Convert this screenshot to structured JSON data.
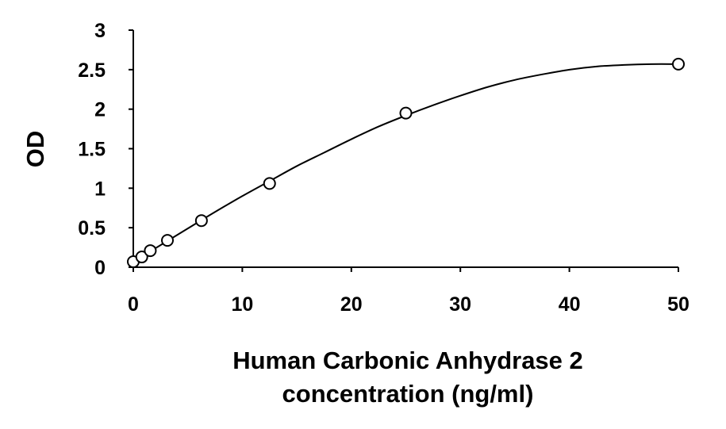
{
  "chart_data": {
    "type": "scatter",
    "title": "",
    "xlabel_lines": [
      "Human Carbonic Anhydrase 2",
      "concentration (ng/ml)"
    ],
    "ylabel": "OD",
    "xlim": [
      0,
      50
    ],
    "ylim": [
      0,
      3
    ],
    "x_ticks": [
      0,
      10,
      20,
      30,
      40,
      50
    ],
    "y_ticks": [
      0,
      0.5,
      1,
      1.5,
      2,
      2.5,
      3
    ],
    "x_tick_labels": [
      "0",
      "10",
      "20",
      "30",
      "40",
      "50"
    ],
    "y_tick_labels": [
      "0",
      "0.5",
      "1",
      "1.5",
      "2",
      "2.5",
      "3"
    ],
    "grid": false,
    "legend": "none",
    "series": [
      {
        "points": [
          {
            "x": 0,
            "y": 0.07
          },
          {
            "x": 0.78,
            "y": 0.13
          },
          {
            "x": 1.56,
            "y": 0.21
          },
          {
            "x": 3.13,
            "y": 0.34
          },
          {
            "x": 6.25,
            "y": 0.59
          },
          {
            "x": 12.5,
            "y": 1.06
          },
          {
            "x": 25,
            "y": 1.95
          },
          {
            "x": 50,
            "y": 2.57
          }
        ],
        "marker": "open-circle",
        "trendline": "polynomial",
        "trendline_points": [
          {
            "x": 0,
            "y": 0.07
          },
          {
            "x": 2.5,
            "y": 0.28
          },
          {
            "x": 5,
            "y": 0.49
          },
          {
            "x": 7.5,
            "y": 0.7
          },
          {
            "x": 10,
            "y": 0.9
          },
          {
            "x": 12.5,
            "y": 1.09
          },
          {
            "x": 15,
            "y": 1.28
          },
          {
            "x": 17.5,
            "y": 1.45
          },
          {
            "x": 20,
            "y": 1.62
          },
          {
            "x": 22.5,
            "y": 1.78
          },
          {
            "x": 25,
            "y": 1.92
          },
          {
            "x": 27.5,
            "y": 2.05
          },
          {
            "x": 30,
            "y": 2.17
          },
          {
            "x": 32.5,
            "y": 2.28
          },
          {
            "x": 35,
            "y": 2.37
          },
          {
            "x": 37.5,
            "y": 2.44
          },
          {
            "x": 40,
            "y": 2.5
          },
          {
            "x": 42.5,
            "y": 2.54
          },
          {
            "x": 45,
            "y": 2.56
          },
          {
            "x": 47.5,
            "y": 2.57
          },
          {
            "x": 50,
            "y": 2.57
          }
        ],
        "color": "#000000"
      }
    ]
  }
}
